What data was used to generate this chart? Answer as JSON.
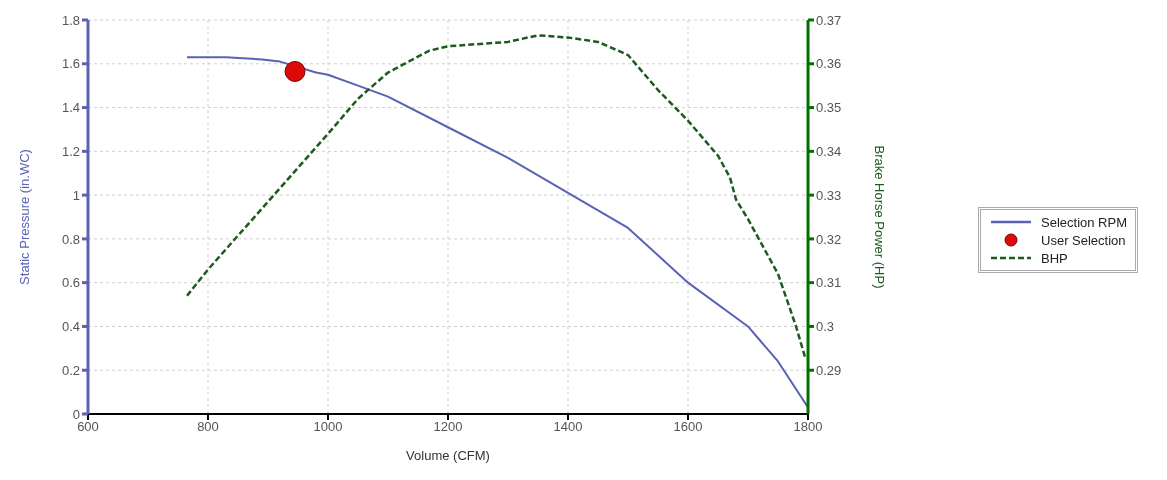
{
  "chart_data": {
    "type": "line",
    "xlabel": "Volume (CFM)",
    "ylabel": "Static Pressure (in.WC)",
    "y2label": "Brake Horse Power (HP)",
    "xlim": [
      600,
      1800
    ],
    "xticks": [
      600,
      800,
      1000,
      1200,
      1400,
      1600,
      1800
    ],
    "ylim": [
      0,
      1.8
    ],
    "yticks": [
      0,
      0.2,
      0.4,
      0.6,
      0.8,
      1,
      1.2,
      1.4,
      1.6,
      1.8
    ],
    "y2lim": [
      0.28,
      0.37
    ],
    "y2ticks": [
      0.29,
      0.3,
      0.31,
      0.32,
      0.33,
      0.34,
      0.35,
      0.36,
      0.37
    ],
    "grid": true,
    "legend": "right",
    "series": [
      {
        "name": "Selection RPM",
        "color": "#5a62b4",
        "line_style": "solid",
        "x": [
          765,
          830,
          890,
          920,
          980,
          1000,
          1050,
          1100,
          1200,
          1300,
          1400,
          1500,
          1600,
          1700,
          1750,
          1800
        ],
        "values": [
          1.63,
          1.63,
          1.62,
          1.61,
          1.56,
          1.55,
          1.5,
          1.45,
          1.31,
          1.17,
          1.01,
          0.85,
          0.6,
          0.4,
          0.24,
          0.03
        ]
      },
      {
        "name": "User Selection",
        "type": "scatter",
        "color": "#dd0a0a",
        "marker": "circle",
        "x": [
          945
        ],
        "values": [
          1.565
        ]
      },
      {
        "name": "BHP",
        "axis": "y2",
        "color": "#1e5a1e",
        "line_style": "dashed",
        "x": [
          765,
          800,
          900,
          1000,
          1050,
          1100,
          1169,
          1200,
          1300,
          1350,
          1400,
          1450,
          1500,
          1550,
          1600,
          1650,
          1670,
          1680,
          1700,
          1750,
          1780,
          1795
        ],
        "values": [
          0.307,
          0.313,
          0.3285,
          0.344,
          0.352,
          0.358,
          0.363,
          0.364,
          0.365,
          0.3665,
          0.366,
          0.365,
          0.362,
          0.354,
          0.347,
          0.339,
          0.334,
          0.329,
          0.3245,
          0.312,
          0.3,
          0.293
        ]
      }
    ]
  }
}
